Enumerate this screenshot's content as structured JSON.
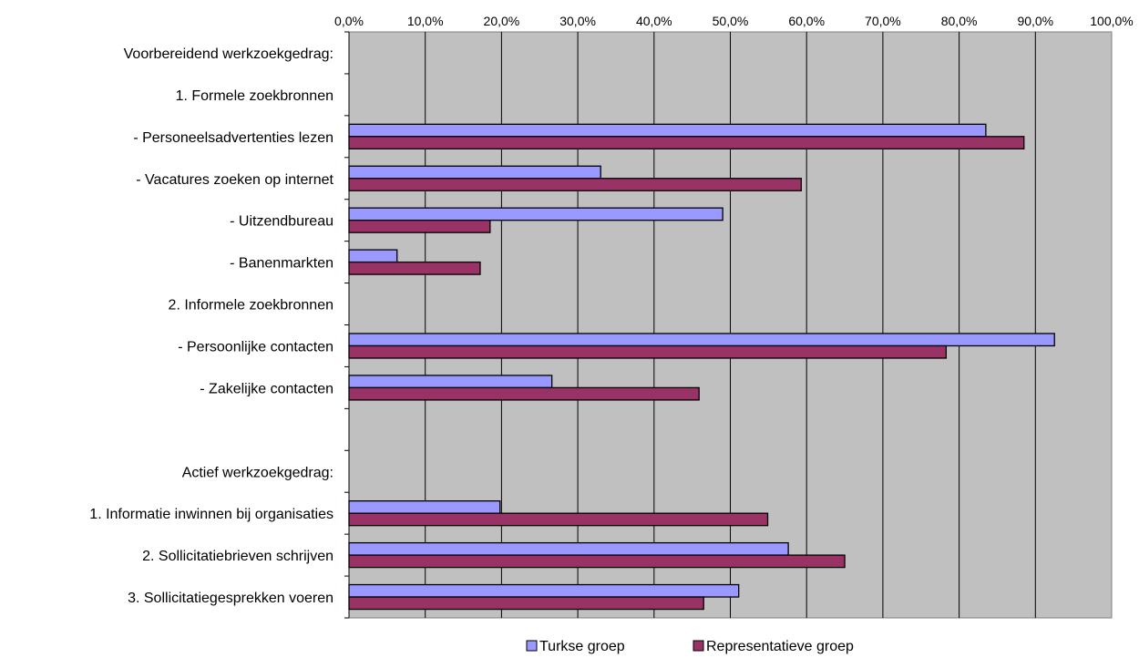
{
  "chart_data": {
    "type": "bar",
    "orientation": "horizontal",
    "title": "",
    "xlabel": "",
    "ylabel": "",
    "xlim": [
      0,
      100
    ],
    "x_tick_labels": [
      "0,0%",
      "10,0%",
      "20,0%",
      "30,0%",
      "40,0%",
      "50,0%",
      "60,0%",
      "70,0%",
      "80,0%",
      "90,0%",
      "100,0%"
    ],
    "x_axis_position": "top",
    "grid": "vertical",
    "plot_background": "#c0c0c0",
    "legend_position": "bottom",
    "categories": [
      "Voorbereidend werkzoekgedrag:",
      "1. Formele zoekbronnen",
      "- Personeelsadvertenties lezen",
      "- Vacatures zoeken op internet",
      "- Uitzendbureau",
      "- Banenmarkten",
      "2. Informele zoekbronnen",
      "- Persoonlijke contacten",
      "- Zakelijke contacten",
      "",
      "Actief werkzoekgedrag:",
      "1. Informatie inwinnen bij organisaties",
      "2. Sollicitatiebrieven schrijven",
      "3. Sollicitatiegesprekken voeren"
    ],
    "series": [
      {
        "name": "Turkse groep",
        "color": "#9999ff",
        "values": [
          null,
          null,
          83.5,
          33.0,
          49.0,
          6.3,
          null,
          92.5,
          26.6,
          null,
          null,
          19.8,
          57.6,
          51.1
        ]
      },
      {
        "name": "Representatieve groep",
        "color": "#993366",
        "values": [
          null,
          null,
          88.5,
          59.3,
          18.5,
          17.2,
          null,
          78.3,
          45.9,
          null,
          null,
          54.9,
          65.0,
          46.5
        ]
      }
    ]
  }
}
